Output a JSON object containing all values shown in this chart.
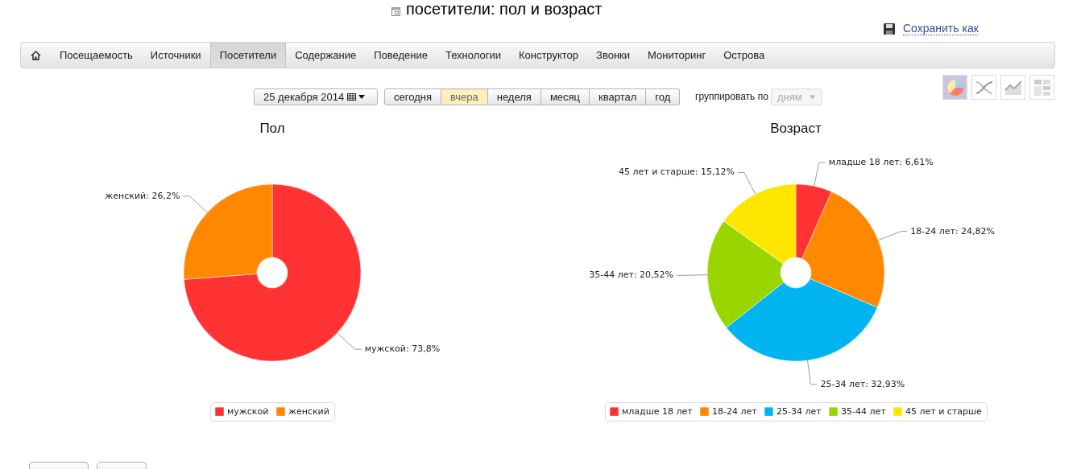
{
  "chart_data": [
    {
      "type": "other",
      "title": "посетители: пол и возраст",
      "annotations": [
        "Сохранить как",
        "Посещаемость",
        "Источники",
        "Посетители",
        "Содержание",
        "Поведение",
        "Технологии",
        "Конструктор",
        "Звонки",
        "Мониторинг",
        "Острова",
        "25 декабря 2014",
        "сегодня",
        "вчера",
        "неделя",
        "месяц",
        "квартал",
        "год",
        "группировать по",
        "дням"
      ]
    },
    {
      "type": "donut",
      "title": "Пол",
      "categories": [
        "мужской",
        "женский"
      ],
      "values": [
        73.8,
        26.2
      ],
      "colors": [
        "#ff3333",
        "#ff8800"
      ],
      "value_labels": [
        "мужской: 73,8%",
        "женский: 26,2%"
      ],
      "legend": "bottom"
    },
    {
      "type": "donut",
      "title": "Возраст",
      "categories": [
        "младше 18 лет",
        "18-24 лет",
        "25-34 лет",
        "35-44 лет",
        "45 лет и старше"
      ],
      "values": [
        6.61,
        24.82,
        32.93,
        20.52,
        15.12
      ],
      "colors": [
        "#ff3333",
        "#ff8800",
        "#00b4f0",
        "#99d600",
        "#ffe600"
      ],
      "value_labels": [
        "младше 18 лет: 6,61%",
        "18-24 лет: 24,82%",
        "25-34 лет: 32,93%",
        "35-44 лет: 20,52%",
        "45 лет и старше: 15,12%"
      ],
      "legend": "bottom"
    }
  ]
}
